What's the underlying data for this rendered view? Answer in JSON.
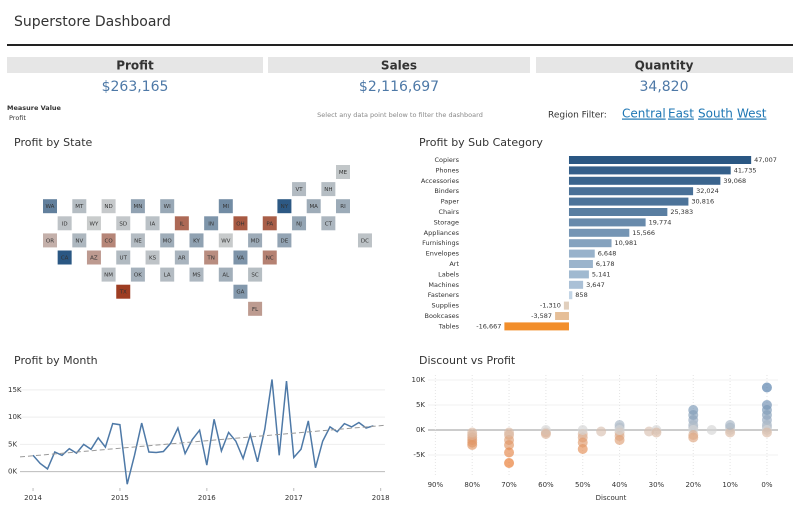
{
  "header": {
    "title": "Superstore Dashboard"
  },
  "kpis": [
    {
      "label": "Profit",
      "value": "$263,165"
    },
    {
      "label": "Sales",
      "value": "$2,116,697"
    },
    {
      "label": "Quantity",
      "value": "34,820"
    }
  ],
  "measure": {
    "label": "Measure Value",
    "value": "Profit"
  },
  "hint": "Select any data point below to filter the dashboard",
  "region_filter": {
    "label": "Region Filter:",
    "options": [
      "Central",
      "East",
      "South",
      "West"
    ]
  },
  "chart_data": [
    {
      "type": "tilemap",
      "title": "Profit by State",
      "categories": [
        "ME",
        "VT",
        "NH",
        "WA",
        "MT",
        "ND",
        "MN",
        "WI",
        "MI",
        "NY",
        "MA",
        "RI",
        "ID",
        "WY",
        "SD",
        "IA",
        "IL",
        "IN",
        "OH",
        "PA",
        "NJ",
        "CT",
        "OR",
        "NV",
        "CO",
        "NE",
        "MO",
        "KY",
        "WV",
        "MD",
        "DE",
        "DC",
        "CA",
        "AZ",
        "UT",
        "KS",
        "AR",
        "TN",
        "VA",
        "NC",
        "NM",
        "OK",
        "LA",
        "MS",
        "AL",
        "SC",
        "TX",
        "GA",
        "FL"
      ],
      "values": [
        454,
        2245,
        1707,
        33403,
        1833,
        230,
        10823,
        8402,
        24463,
        74039,
        6786,
        7286,
        827,
        100,
        395,
        1184,
        -12608,
        18383,
        -16971,
        -15560,
        9773,
        3511,
        -1190,
        3317,
        -6528,
        2037,
        6436,
        11200,
        186,
        7031,
        9977,
        1060,
        76381,
        -3428,
        2547,
        836,
        4009,
        -5342,
        18598,
        -7491,
        1157,
        4854,
        2196,
        3173,
        5787,
        1769,
        -25729,
        16250,
        -3399
      ],
      "colors": {
        "negative": "#9e3d22",
        "neutral": "#cfd0cf",
        "positive": "#2a5783"
      }
    },
    {
      "type": "hbar",
      "title": "Profit by Sub Category",
      "categories": [
        "Copiers",
        "Phones",
        "Accessories",
        "Binders",
        "Paper",
        "Chairs",
        "Storage",
        "Appliances",
        "Furnishings",
        "Envelopes",
        "Art",
        "Labels",
        "Machines",
        "Fasteners",
        "Supplies",
        "Bookcases",
        "Tables"
      ],
      "values": [
        47007,
        41735,
        39068,
        32024,
        30816,
        25383,
        19774,
        15566,
        10981,
        6648,
        6178,
        5141,
        3647,
        858,
        -1310,
        -3587,
        -16667
      ],
      "value_labels": [
        "47,007",
        "41,735",
        "39,068",
        "32,024",
        "30,816",
        "25,383",
        "19,774",
        "15,566",
        "10,981",
        "6,648",
        "6,178",
        "5,141",
        "3,647",
        "858",
        "-1,310",
        "-3,587",
        "-16,667"
      ],
      "xlim": [
        -17800,
        48000
      ],
      "colors": {
        "negative": "#f28e2b",
        "neutral": "#dbe9f6",
        "positive": "#2a5783"
      }
    },
    {
      "type": "line",
      "title": "Profit by Month",
      "color": "#4e79a7",
      "x": [
        2014,
        2014.083,
        2014.167,
        2014.25,
        2014.333,
        2014.417,
        2014.5,
        2014.583,
        2014.667,
        2014.75,
        2014.833,
        2014.917,
        2015,
        2015.083,
        2015.167,
        2015.25,
        2015.333,
        2015.417,
        2015.5,
        2015.583,
        2015.667,
        2015.75,
        2015.833,
        2015.917,
        2016,
        2016.083,
        2016.167,
        2016.25,
        2016.333,
        2016.417,
        2016.5,
        2016.583,
        2016.667,
        2016.75,
        2016.833,
        2016.917,
        2017,
        2017.083,
        2017.167,
        2017.25,
        2017.333,
        2017.417,
        2017.5,
        2017.583,
        2017.667,
        2017.75,
        2017.833,
        2017.917
      ],
      "values": [
        3000,
        1500,
        500,
        3600,
        3000,
        4200,
        3400,
        5000,
        4100,
        6200,
        4500,
        8800,
        8600,
        -2300,
        3000,
        8900,
        3600,
        3500,
        3700,
        5200,
        8000,
        3300,
        5900,
        7600,
        1200,
        9600,
        3800,
        7200,
        5600,
        2400,
        6800,
        1800,
        7800,
        16900,
        3000,
        16600,
        2600,
        4100,
        9300,
        700,
        5600,
        8200,
        7300,
        8800,
        8200,
        9000,
        8000,
        8400
      ],
      "trend": {
        "color": "#999999",
        "x": [
          2013.85,
          2018.05
        ],
        "values": [
          2700,
          8500
        ]
      },
      "xlim": [
        2013.85,
        2018.05
      ],
      "xticks": [
        2014,
        2015,
        2016,
        2017,
        2018
      ],
      "ylim": [
        -3000,
        19000
      ],
      "yticks": [
        {
          "value": 0,
          "label": "0K"
        },
        {
          "value": 5000,
          "label": "5K"
        },
        {
          "value": 10000,
          "label": "10K"
        },
        {
          "value": 15000,
          "label": "15K"
        }
      ],
      "grid": true
    },
    {
      "type": "scatter",
      "title": "Discount vs Profit",
      "x_label": "Discount",
      "x": [
        80,
        80,
        80,
        80,
        80,
        80,
        70,
        70,
        70,
        70,
        70,
        70,
        60,
        60,
        60,
        50,
        50,
        50,
        50,
        50,
        45,
        40,
        40,
        40,
        40,
        40,
        40,
        32,
        30,
        30,
        20,
        20,
        20,
        20,
        20,
        20,
        20,
        20,
        15,
        10,
        10,
        10,
        10,
        0,
        0,
        0,
        0,
        0,
        0,
        0,
        0,
        0
      ],
      "values": [
        -1500,
        -2000,
        -2500,
        -1000,
        -500,
        -3000,
        -1000,
        -2000,
        -3000,
        -4500,
        -6600,
        -500,
        -500,
        0,
        -800,
        -1500,
        -3800,
        -800,
        -2500,
        0,
        -300,
        1000,
        500,
        -500,
        -1200,
        -2000,
        0,
        -300,
        0,
        -500,
        4000,
        2000,
        1000,
        500,
        0,
        -1000,
        -1500,
        3000,
        0,
        500,
        0,
        -500,
        1000,
        8500,
        5000,
        4000,
        3000,
        2000,
        1000,
        500,
        0,
        -500
      ],
      "xlim": [
        92,
        -3
      ],
      "xticks": [
        {
          "value": 90,
          "label": "90%"
        },
        {
          "value": 80,
          "label": "80%"
        },
        {
          "value": 70,
          "label": "70%"
        },
        {
          "value": 60,
          "label": "60%"
        },
        {
          "value": 50,
          "label": "50%"
        },
        {
          "value": 40,
          "label": "40%"
        },
        {
          "value": 30,
          "label": "30%"
        },
        {
          "value": 20,
          "label": "20%"
        },
        {
          "value": 10,
          "label": "10%"
        },
        {
          "value": 0,
          "label": "0%"
        }
      ],
      "ylim": [
        -9000,
        11000
      ],
      "yticks": [
        {
          "value": 10000,
          "label": "10K"
        },
        {
          "value": 5000,
          "label": "5K"
        },
        {
          "value": 0,
          "label": "0K"
        },
        {
          "value": -5000,
          "label": "-5K"
        }
      ],
      "grid": true,
      "colors": {
        "negative": "#e8762b",
        "neutral": "#d4d4d4",
        "positive": "#4e79a7"
      }
    }
  ]
}
